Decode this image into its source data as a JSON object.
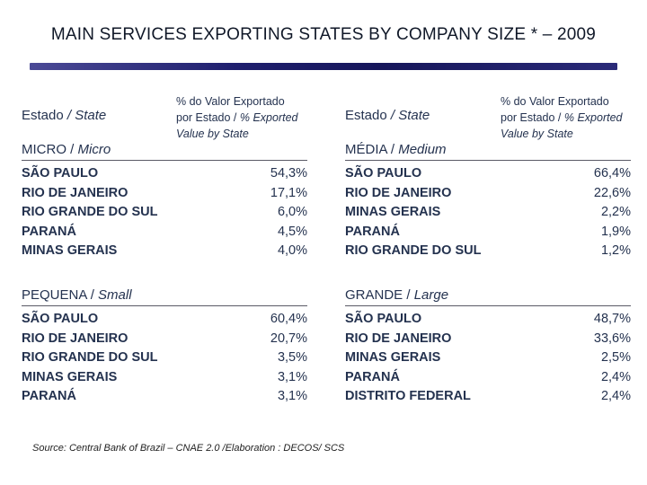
{
  "title": "MAIN SERVICES EXPORTING STATES BY COMPANY SIZE * – 2009",
  "headers": {
    "estado_pt": "Estado",
    "estado_en": "State",
    "pct_line1": "% do Valor Exportado",
    "pct_line2_pt": "por Estado / ",
    "pct_line2_en": "% Exported",
    "pct_line3_en": "Value by State"
  },
  "groups": {
    "micro": {
      "label_pt": "MICRO",
      "label_en": "Micro",
      "rows": [
        {
          "state": "SÃO PAULO",
          "value": "54,3%"
        },
        {
          "state": "RIO DE JANEIRO",
          "value": "17,1%"
        },
        {
          "state": "RIO GRANDE DO SUL",
          "value": "6,0%"
        },
        {
          "state": "PARANÁ",
          "value": "4,5%"
        },
        {
          "state": "MINAS GERAIS",
          "value": "4,0%"
        }
      ]
    },
    "media": {
      "label_pt": "MÉDIA",
      "label_en": "Medium",
      "rows": [
        {
          "state": "SÃO PAULO",
          "value": "66,4%"
        },
        {
          "state": "RIO DE JANEIRO",
          "value": "22,6%"
        },
        {
          "state": "MINAS GERAIS",
          "value": "2,2%"
        },
        {
          "state": "PARANÁ",
          "value": "1,9%"
        },
        {
          "state": "RIO GRANDE DO SUL",
          "value": "1,2%"
        }
      ]
    },
    "pequena": {
      "label_pt": "PEQUENA",
      "label_en": "Small",
      "rows": [
        {
          "state": "SÃO PAULO",
          "value": "60,4%"
        },
        {
          "state": "RIO DE JANEIRO",
          "value": "20,7%"
        },
        {
          "state": "RIO GRANDE DO SUL",
          "value": "3,5%"
        },
        {
          "state": "MINAS GERAIS",
          "value": "3,1%"
        },
        {
          "state": "PARANÁ",
          "value": "3,1%"
        }
      ]
    },
    "grande": {
      "label_pt": "GRANDE",
      "label_en": "Large",
      "rows": [
        {
          "state": "SÃO PAULO",
          "value": "48,7%"
        },
        {
          "state": "RIO DE JANEIRO",
          "value": "33,6%"
        },
        {
          "state": "MINAS GERAIS",
          "value": "2,5%"
        },
        {
          "state": "PARANÁ",
          "value": "2,4%"
        },
        {
          "state": "DISTRITO FEDERAL",
          "value": "2,4%"
        }
      ]
    }
  },
  "footer": "Source: Central Bank of Brazil – CNAE 2.0 /Elaboration : DECOS/ SCS"
}
